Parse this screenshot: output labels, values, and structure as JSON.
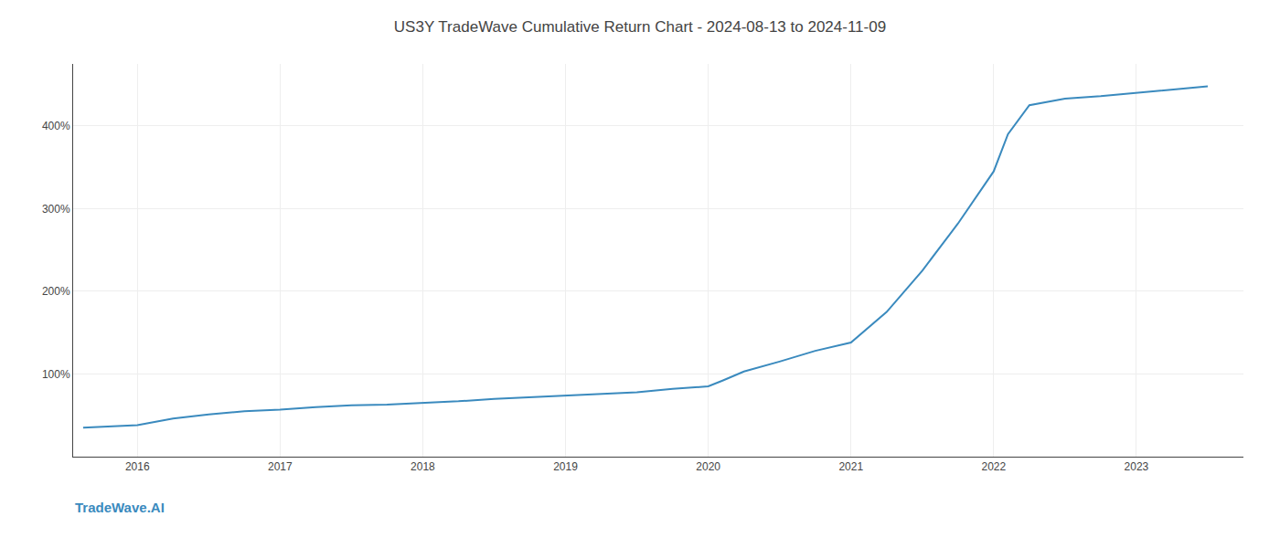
{
  "chart_data": {
    "type": "line",
    "title": "US3Y TradeWave Cumulative Return Chart - 2024-08-13 to 2024-11-09",
    "annotations": [
      "TradeWave.AI"
    ],
    "x": [
      2015.62,
      2016.0,
      2016.25,
      2016.5,
      2016.75,
      2017.0,
      2017.25,
      2017.5,
      2017.75,
      2018.0,
      2018.25,
      2018.5,
      2018.75,
      2019.0,
      2019.25,
      2019.5,
      2019.75,
      2020.0,
      2020.1,
      2020.25,
      2020.5,
      2020.75,
      2021.0,
      2021.25,
      2021.5,
      2021.75,
      2022.0,
      2022.1,
      2022.25,
      2022.5,
      2022.75,
      2023.0,
      2023.25,
      2023.5
    ],
    "values": [
      35,
      38,
      46,
      51,
      55,
      57,
      60,
      62,
      63,
      65,
      67,
      70,
      72,
      74,
      76,
      78,
      82,
      85,
      92,
      103,
      115,
      128,
      138,
      175,
      225,
      282,
      345,
      390,
      425,
      433,
      436,
      440,
      444,
      448
    ],
    "color": "#3a8abe",
    "xlim": [
      2015.55,
      2023.75
    ],
    "xticks": [
      2016,
      2017,
      2018,
      2019,
      2020,
      2021,
      2022,
      2023
    ],
    "ylim": [
      0,
      475
    ],
    "yticks": [
      {
        "value": 100,
        "label": "100%"
      },
      {
        "value": 200,
        "label": "200%"
      },
      {
        "value": 300,
        "label": "300%"
      },
      {
        "value": 400,
        "label": "400%"
      }
    ],
    "grid": true
  }
}
